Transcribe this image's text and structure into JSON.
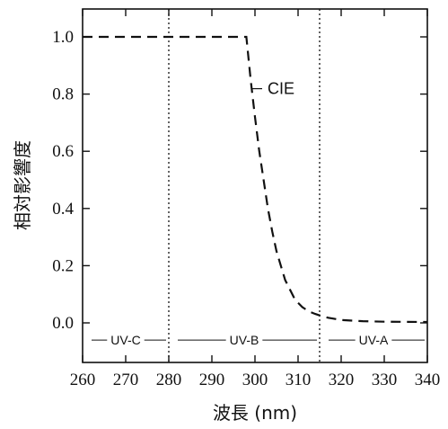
{
  "chart_data": {
    "type": "line",
    "xlabel": "波長 (nm)",
    "ylabel": "相対影響度",
    "xlim": [
      260,
      340
    ],
    "ylim": [
      -0.06,
      1.1
    ],
    "x_ticks": [
      260,
      270,
      280,
      290,
      300,
      310,
      320,
      330,
      340
    ],
    "y_ticks": [
      0.0,
      0.2,
      0.4,
      0.6,
      0.8,
      1.0
    ],
    "y_tick_labels": [
      "0.0",
      "0.2",
      "0.4",
      "0.6",
      "0.8",
      "1.0"
    ],
    "grid": false,
    "series": [
      {
        "name": "CIE",
        "line_style": "dashed",
        "color": "#111111",
        "x": [
          260,
          270,
          280,
          290,
          295,
          298,
          299,
          300,
          301,
          302,
          303,
          304,
          305,
          306,
          307,
          308,
          309,
          310,
          311,
          312,
          313,
          314,
          315,
          317,
          320,
          325,
          330,
          340
        ],
        "y": [
          1.0,
          1.0,
          1.0,
          1.0,
          1.0,
          1.0,
          0.85,
          0.72,
          0.6,
          0.5,
          0.4,
          0.32,
          0.25,
          0.2,
          0.15,
          0.12,
          0.09,
          0.07,
          0.055,
          0.045,
          0.037,
          0.031,
          0.026,
          0.018,
          0.01,
          0.006,
          0.004,
          0.003
        ]
      }
    ],
    "reference_lines": [
      {
        "x": 280,
        "style": "dotted"
      },
      {
        "x": 315,
        "style": "dotted"
      }
    ],
    "bands": [
      {
        "label": "UV-C",
        "from": 260,
        "to": 280
      },
      {
        "label": "UV-B",
        "from": 280,
        "to": 315
      },
      {
        "label": "UV-A",
        "from": 315,
        "to": 340
      }
    ],
    "band_y": -0.06,
    "annotations": [
      {
        "text": "CIE",
        "x": 300,
        "y": 0.8
      }
    ]
  }
}
